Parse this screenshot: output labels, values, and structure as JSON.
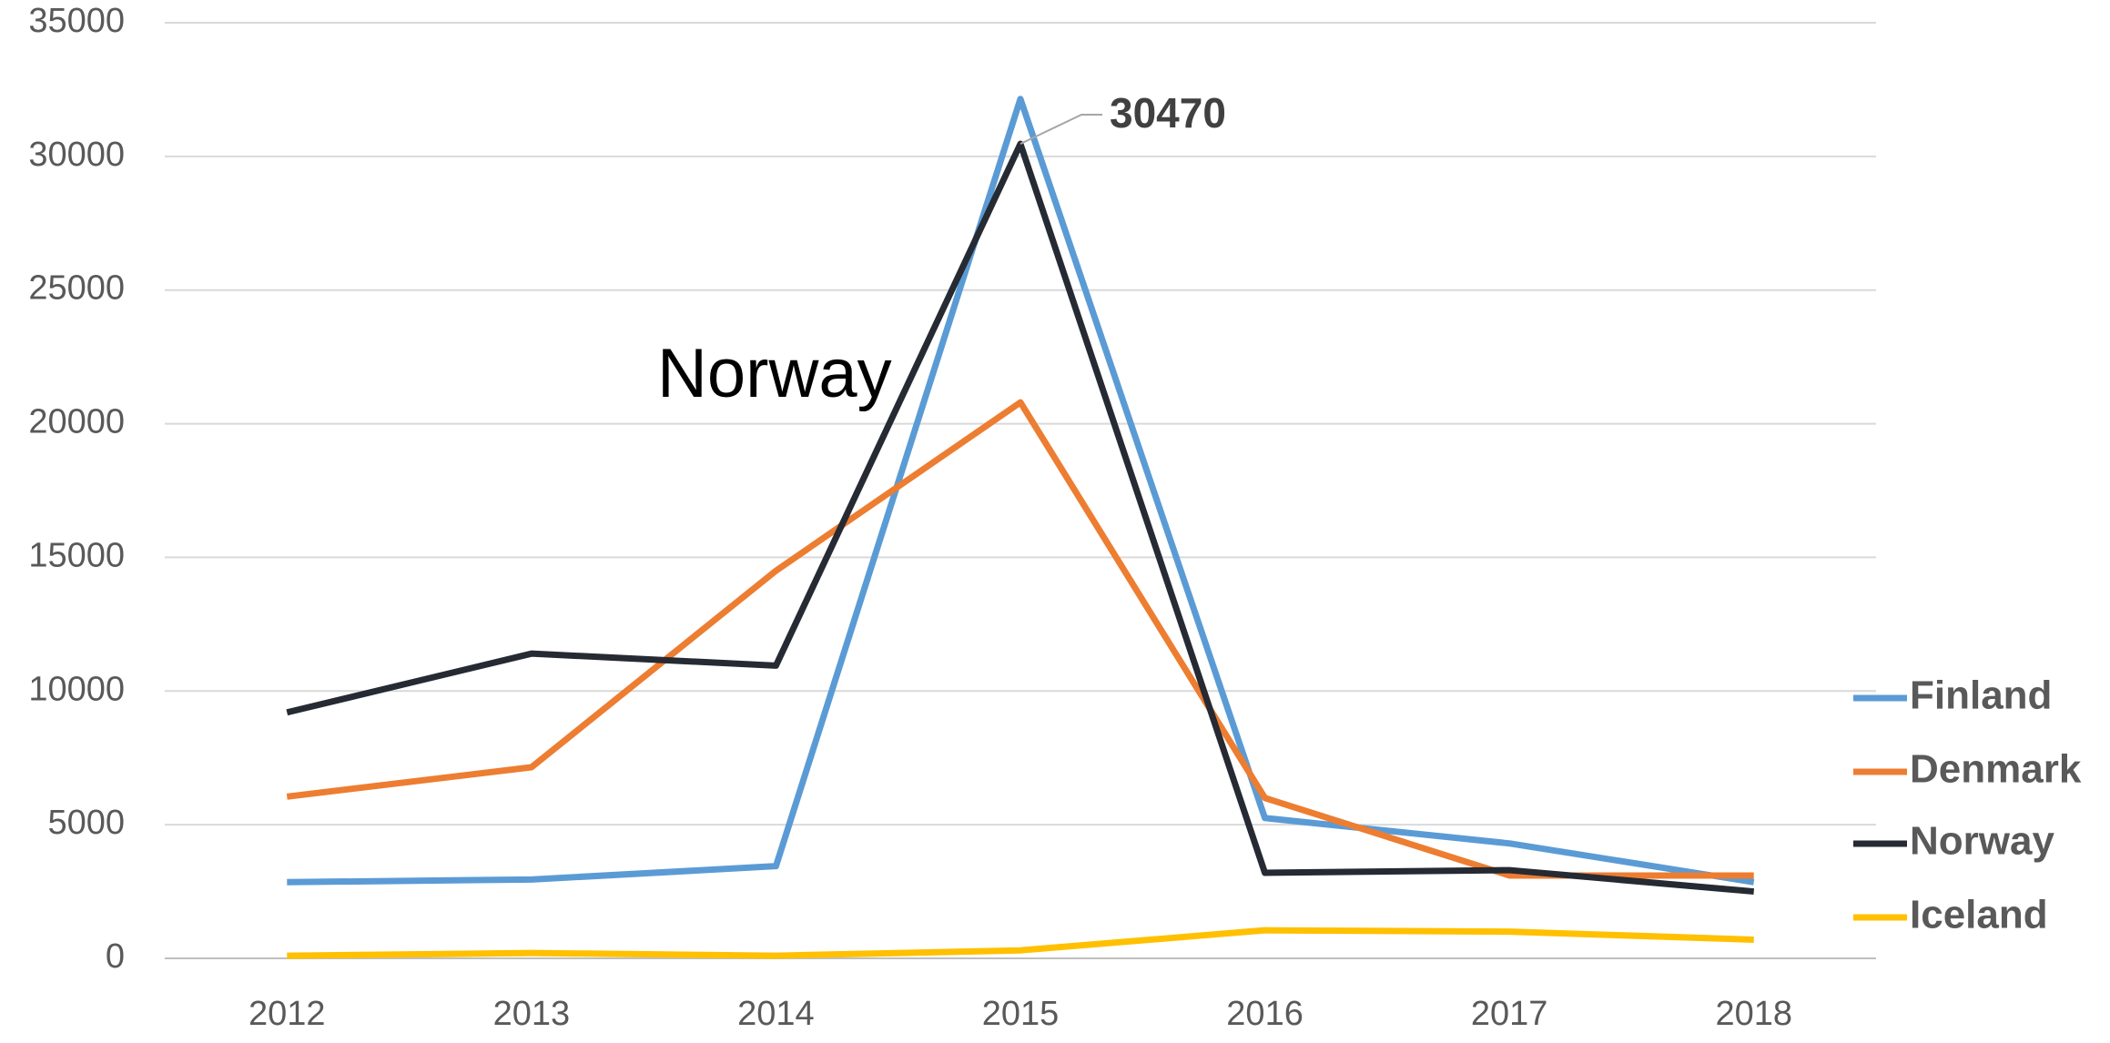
{
  "chart_data": {
    "type": "line",
    "categories": [
      "2012",
      "2013",
      "2014",
      "2015",
      "2016",
      "2017",
      "2018"
    ],
    "series": [
      {
        "name": "Finland",
        "color": "#5b9bd5",
        "values": [
          2850,
          2950,
          3450,
          32150,
          5250,
          4300,
          2850
        ]
      },
      {
        "name": "Denmark",
        "color": "#ed7d31",
        "values": [
          6050,
          7150,
          14500,
          20800,
          6000,
          3100,
          3100
        ]
      },
      {
        "name": "Norway",
        "color": "#262a33",
        "values": [
          9200,
          11400,
          10950,
          30470,
          3200,
          3300,
          2500
        ]
      },
      {
        "name": "Iceland",
        "color": "#ffc000",
        "values": [
          100,
          200,
          100,
          300,
          1050,
          1000,
          700
        ]
      }
    ],
    "annotations": [
      "Norway"
    ],
    "ylim": [
      0,
      35000
    ],
    "yticks": [
      0,
      5000,
      10000,
      15000,
      20000,
      25000,
      30000,
      35000
    ],
    "grid": true,
    "legend": "right"
  }
}
